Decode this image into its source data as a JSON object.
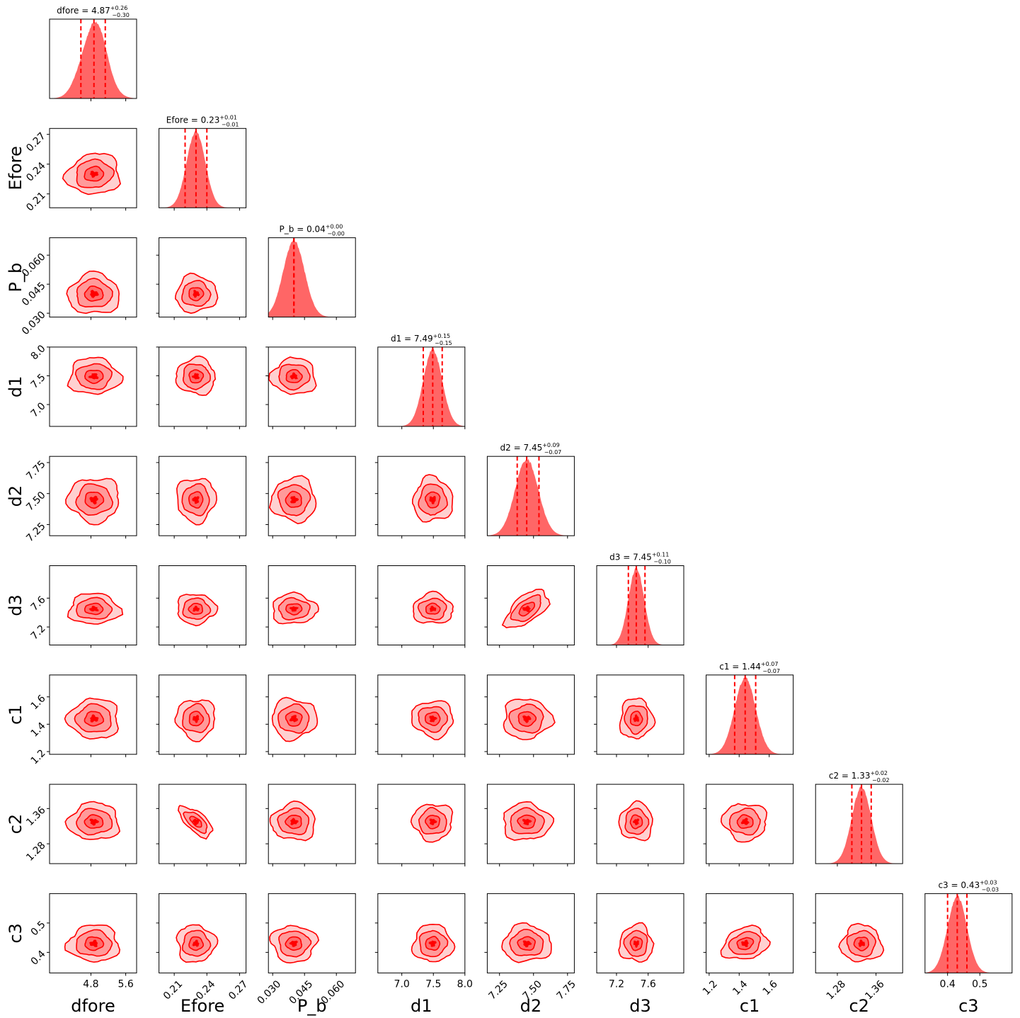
{
  "chart_data": {
    "type": "corner",
    "color": "#ff0000",
    "fill_color": "#ff0000",
    "params": [
      {
        "name": "dfore",
        "median": 4.87,
        "plus": "0.26",
        "minus": "0.30",
        "range": [
          3.85,
          5.85
        ],
        "ticks": [
          4.8,
          5.6
        ],
        "tick_labels": [
          "4.8",
          "5.6"
        ],
        "sigma": 0.28,
        "skew": 0.3
      },
      {
        "name": "Efore",
        "median": 0.23,
        "plus": "0.01",
        "minus": "0.01",
        "range": [
          0.196,
          0.276
        ],
        "ticks": [
          0.21,
          0.24,
          0.27
        ],
        "tick_labels": [
          "0.21",
          "0.24",
          "0.27"
        ],
        "sigma": 0.0085,
        "skew": 0
      },
      {
        "name": "P_b",
        "median": 0.04,
        "plus": "0.00",
        "minus": "0.00",
        "range": [
          0.028,
          0.069
        ],
        "ticks": [
          0.03,
          0.045,
          0.06
        ],
        "tick_labels": [
          "0.030",
          "0.045",
          "0.060"
        ],
        "sigma": 0.005,
        "skew": 0
      },
      {
        "name": "d1",
        "median": 7.49,
        "plus": "0.15",
        "minus": "0.15",
        "range": [
          6.62,
          8.0
        ],
        "ticks": [
          7.0,
          7.5,
          8.0
        ],
        "tick_labels": [
          "7.0",
          "7.5",
          "8.0"
        ],
        "sigma": 0.15,
        "skew": 0
      },
      {
        "name": "d2",
        "median": 7.45,
        "plus": "0.09",
        "minus": "0.07",
        "range": [
          7.16,
          7.8
        ],
        "ticks": [
          7.25,
          7.5,
          7.75
        ],
        "tick_labels": [
          "7.25",
          "7.50",
          "7.75"
        ],
        "sigma": 0.085,
        "skew": 0
      },
      {
        "name": "d3",
        "median": 7.45,
        "plus": "0.11",
        "minus": "0.10",
        "range": [
          6.95,
          8.05
        ],
        "ticks": [
          7.2,
          7.6
        ],
        "tick_labels": [
          "7.2",
          "7.6"
        ],
        "sigma": 0.1,
        "skew": 0
      },
      {
        "name": "c1",
        "median": 1.44,
        "plus": "0.07",
        "minus": "0.07",
        "range": [
          1.18,
          1.76
        ],
        "ticks": [
          1.2,
          1.4,
          1.6
        ],
        "tick_labels": [
          "1.2",
          "1.4",
          "1.6"
        ],
        "sigma": 0.07,
        "skew": 0
      },
      {
        "name": "c2",
        "median": 1.33,
        "plus": "0.02",
        "minus": "0.02",
        "range": [
          1.235,
          1.415
        ],
        "ticks": [
          1.28,
          1.36
        ],
        "tick_labels": [
          "1.28",
          "1.36"
        ],
        "sigma": 0.02,
        "skew": 0
      },
      {
        "name": "c3",
        "median": 0.43,
        "plus": "0.03",
        "minus": "0.03",
        "range": [
          0.33,
          0.6
        ],
        "ticks": [
          0.4,
          0.5
        ],
        "tick_labels": [
          "0.4",
          "0.5"
        ],
        "sigma": 0.03,
        "skew": 0
      }
    ],
    "correlations": {
      "1-7": -0.85,
      "4-5": 0.7,
      "1-2": 0.1,
      "0-1": 0.15,
      "6-8": 0.3,
      "3-6": -0.1
    },
    "contour_levels": 3,
    "quantile_lines": true,
    "grid": false
  }
}
